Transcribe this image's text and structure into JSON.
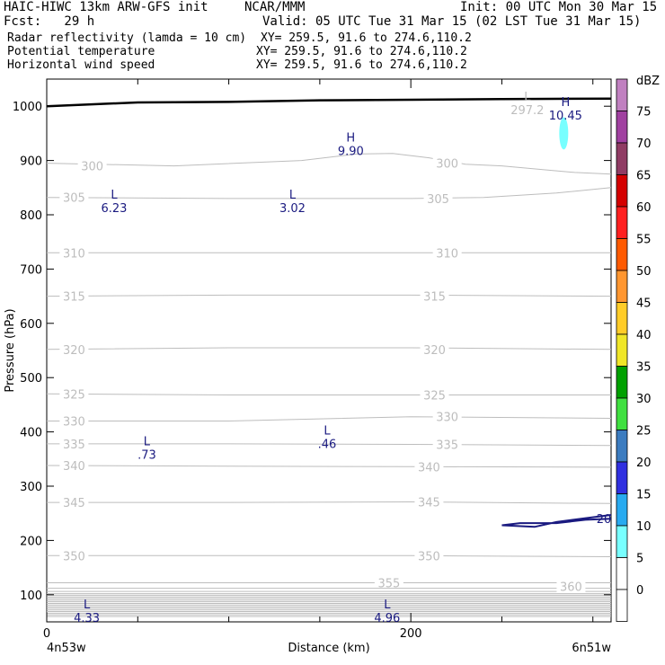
{
  "header": {
    "model": "HAIC-HIWC 13km ARW-GFS init",
    "center": "NCAR/MMM",
    "init": "Init: 00 UTC Mon 30 Mar 15",
    "fcst": "Fcst:   29 h",
    "valid": "Valid: 05 UTC Tue 31 Mar 15 (02 LST Tue 31 Mar 15)"
  },
  "fields": [
    {
      "name": "Radar reflectivity (lamda = 10 cm)",
      "xy": "XY= 259.5, 91.6 to 274.6,110.2",
      "color": "#000000"
    },
    {
      "name": "Potential temperature",
      "xy": "XY= 259.5, 91.6 to 274.6,110.2",
      "color": "#bdbdbd"
    },
    {
      "name": "Horizontal wind speed",
      "xy": "XY= 259.5, 91.6 to 274.6,110.2",
      "color": "#1a1a80"
    }
  ],
  "colorbar": {
    "unit": "dBZ",
    "levels": [
      "75",
      "70",
      "65",
      "60",
      "55",
      "50",
      "45",
      "40",
      "35",
      "30",
      "25",
      "20",
      "15",
      "10",
      "5",
      "0"
    ],
    "colors": [
      "#c080c0",
      "#a040a0",
      "#903c64",
      "#d40000",
      "#ff2020",
      "#ff5a00",
      "#ff9630",
      "#ffcc28",
      "#f0e628",
      "#00a000",
      "#40e040",
      "#3c7cc0",
      "#3030e0",
      "#28aaf0",
      "#78ffff",
      "#ffffff",
      "#ffffff"
    ]
  },
  "chart_data": {
    "type": "line",
    "xlabel": "Distance (km)",
    "ylabel": "Pressure (hPa)",
    "xlim": [
      0,
      310
    ],
    "ylim": [
      1050,
      50
    ],
    "x_ticks": [
      "0",
      "200"
    ],
    "x_tick_values": [
      0,
      200
    ],
    "x_ticks_minor": [
      50,
      100,
      150,
      250,
      300
    ],
    "y_ticks": [
      "100",
      "200",
      "300",
      "400",
      "500",
      "600",
      "700",
      "800",
      "900",
      "1000"
    ],
    "y_tick_values": [
      100,
      200,
      300,
      400,
      500,
      600,
      700,
      800,
      900,
      1000
    ],
    "left_endpoint": "4n53w",
    "right_endpoint": "6n51w",
    "theta_contours": [
      {
        "level": 300,
        "points": [
          [
            0,
            895
          ],
          [
            70,
            890
          ],
          [
            140,
            900
          ],
          [
            170,
            912
          ],
          [
            190,
            913
          ],
          [
            210,
            905
          ],
          [
            230,
            893
          ],
          [
            250,
            890
          ],
          [
            290,
            878
          ],
          [
            310,
            875
          ]
        ],
        "labels": [
          [
            25,
            890
          ],
          [
            220,
            895
          ]
        ]
      },
      {
        "level": 305,
        "points": [
          [
            0,
            832
          ],
          [
            100,
            830
          ],
          [
            200,
            830
          ],
          [
            240,
            832
          ],
          [
            280,
            840
          ],
          [
            310,
            850
          ]
        ],
        "labels": [
          [
            15,
            832
          ],
          [
            215,
            830
          ]
        ]
      },
      {
        "level": 310,
        "points": [
          [
            0,
            730
          ],
          [
            100,
            730
          ],
          [
            200,
            730
          ],
          [
            310,
            730
          ]
        ],
        "labels": [
          [
            15,
            730
          ],
          [
            220,
            730
          ]
        ]
      },
      {
        "level": 315,
        "points": [
          [
            0,
            650
          ],
          [
            100,
            652
          ],
          [
            200,
            652
          ],
          [
            310,
            650
          ]
        ],
        "labels": [
          [
            15,
            650
          ],
          [
            213,
            650
          ]
        ]
      },
      {
        "level": 320,
        "points": [
          [
            0,
            552
          ],
          [
            100,
            555
          ],
          [
            200,
            555
          ],
          [
            310,
            552
          ]
        ],
        "labels": [
          [
            15,
            552
          ],
          [
            213,
            552
          ]
        ]
      },
      {
        "level": 325,
        "points": [
          [
            0,
            470
          ],
          [
            100,
            468
          ],
          [
            200,
            468
          ],
          [
            310,
            468
          ]
        ],
        "labels": [
          [
            15,
            470
          ],
          [
            213,
            468
          ]
        ]
      },
      {
        "level": 330,
        "points": [
          [
            0,
            420
          ],
          [
            100,
            420
          ],
          [
            200,
            428
          ],
          [
            310,
            425
          ]
        ],
        "labels": [
          [
            15,
            420
          ],
          [
            220,
            428
          ]
        ]
      },
      {
        "level": 335,
        "points": [
          [
            0,
            378
          ],
          [
            100,
            378
          ],
          [
            200,
            377
          ],
          [
            310,
            375
          ]
        ],
        "labels": [
          [
            15,
            378
          ],
          [
            220,
            377
          ]
        ]
      },
      {
        "level": 340,
        "points": [
          [
            0,
            338
          ],
          [
            100,
            337
          ],
          [
            200,
            336
          ],
          [
            310,
            335
          ]
        ],
        "labels": [
          [
            15,
            338
          ],
          [
            210,
            336
          ]
        ]
      },
      {
        "level": 345,
        "points": [
          [
            0,
            270
          ],
          [
            100,
            270
          ],
          [
            200,
            271
          ],
          [
            310,
            268
          ]
        ],
        "labels": [
          [
            15,
            270
          ],
          [
            210,
            271
          ]
        ]
      },
      {
        "level": 350,
        "points": [
          [
            0,
            172
          ],
          [
            100,
            172
          ],
          [
            200,
            172
          ],
          [
            310,
            170
          ]
        ],
        "labels": [
          [
            15,
            172
          ],
          [
            210,
            172
          ]
        ]
      },
      {
        "level": 355,
        "points": [
          [
            0,
            122
          ],
          [
            100,
            122
          ],
          [
            200,
            122
          ],
          [
            310,
            122
          ]
        ],
        "labels": [
          [
            188,
            122
          ]
        ]
      },
      {
        "level": 360,
        "points": [
          [
            0,
            112
          ],
          [
            100,
            112
          ],
          [
            200,
            112
          ],
          [
            310,
            112
          ]
        ],
        "labels": [
          [
            288,
            115
          ]
        ]
      }
    ],
    "wind_contours": [
      {
        "level": 20,
        "points": [
          [
            310,
            247
          ],
          [
            296,
            241
          ],
          [
            280,
            234
          ],
          [
            268,
            225
          ],
          [
            250,
            228
          ],
          [
            260,
            232
          ],
          [
            280,
            232
          ],
          [
            296,
            238
          ],
          [
            310,
            240
          ]
        ],
        "labels": [
          [
            302,
            240
          ]
        ]
      }
    ],
    "extrema": [
      {
        "type": "L",
        "value": "4.33",
        "x": 22,
        "y": 75
      },
      {
        "type": "L",
        "value": "4.96",
        "x": 187,
        "y": 75
      },
      {
        "type": "L",
        "value": ".73",
        "x": 55,
        "y": 375
      },
      {
        "type": "L",
        "value": ".46",
        "x": 154,
        "y": 395
      },
      {
        "type": "L",
        "value": "6.23",
        "x": 37,
        "y": 830
      },
      {
        "type": "L",
        "value": "3.02",
        "x": 135,
        "y": 830
      },
      {
        "type": "H",
        "value": "9.90",
        "x": 167,
        "y": 935
      },
      {
        "type": "H",
        "value": "10.45",
        "x": 285,
        "y": 1000
      }
    ],
    "theta_extrema": [
      {
        "type": "L",
        "value": "297.2",
        "x": 264,
        "y": 1010
      }
    ],
    "reflectivity_cell": {
      "x": 284,
      "y": 950,
      "level": "5"
    },
    "surface_pressure": [
      [
        0,
        1000
      ],
      [
        50,
        1007
      ],
      [
        100,
        1008
      ],
      [
        150,
        1011
      ],
      [
        200,
        1012
      ],
      [
        250,
        1013
      ],
      [
        310,
        1014
      ]
    ]
  }
}
